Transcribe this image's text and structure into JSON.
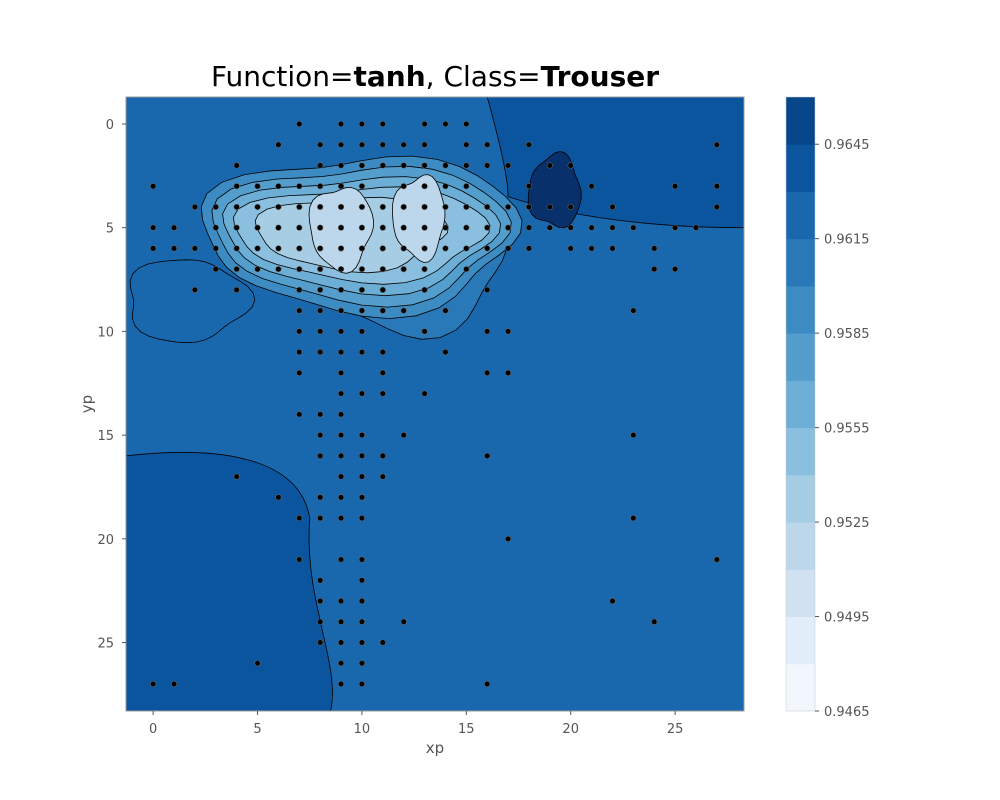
{
  "chart_data": {
    "type": "heatmap",
    "title_parts": [
      "Function=",
      "tanh",
      ", Class=",
      "Trouser"
    ],
    "xlabel": "xp",
    "ylabel": "yp",
    "xlim": [
      -1.3,
      28.3
    ],
    "ylim": [
      28.3,
      -1.3
    ],
    "y_inverted": true,
    "x_ticks": [
      "0",
      "5",
      "10",
      "15",
      "20",
      "25"
    ],
    "y_ticks": [
      "0",
      "5",
      "10",
      "15",
      "20",
      "25"
    ],
    "grid": false,
    "colorbar": {
      "levels": [
        0.9465,
        0.948,
        0.9495,
        0.951,
        0.9525,
        0.954,
        0.9555,
        0.957,
        0.9585,
        0.96,
        0.9615,
        0.963,
        0.9645,
        0.966
      ],
      "tick_labels": [
        "0.9465",
        "0.9495",
        "0.9525",
        "0.9555",
        "0.9585",
        "0.9615",
        "0.9645"
      ],
      "colors": [
        "#f2f7fd",
        "#e2eef9",
        "#d0e1f2",
        "#bcd7eb",
        "#a6cde4",
        "#8bbfdf",
        "#6caed6",
        "#539ecd",
        "#3c8bc3",
        "#2979b9",
        "#1967ad",
        "#0b559f",
        "#08468b",
        "#08306b"
      ]
    },
    "background_level_top": 0.9615,
    "background_level_left": 0.963,
    "regions": [
      {
        "name": "band-left",
        "level": 0.9615,
        "x": [
          -1.3,
          4.5
        ],
        "y": [
          6.5,
          10.5
        ]
      },
      {
        "name": "center-plateau",
        "level": 0.96,
        "x": [
          7,
          17
        ],
        "y": [
          2,
          10
        ]
      },
      {
        "name": "ring-1",
        "level": 0.9585,
        "x": [
          2.5,
          17.5
        ],
        "y": [
          1.5,
          9
        ]
      },
      {
        "name": "ring-2",
        "level": 0.957,
        "x": [
          3,
          17
        ],
        "y": [
          2,
          8.5
        ]
      },
      {
        "name": "ring-3",
        "level": 0.9555,
        "x": [
          3.5,
          16.5
        ],
        "y": [
          2.5,
          8
        ]
      },
      {
        "name": "ring-4",
        "level": 0.954,
        "x": [
          4,
          16
        ],
        "y": [
          3,
          7.5
        ]
      },
      {
        "name": "ring-5",
        "level": 0.9525,
        "x": [
          5,
          14
        ],
        "y": [
          3.5,
          7
        ]
      },
      {
        "name": "peak-left",
        "level": 0.951,
        "x": [
          7.5,
          10.5
        ],
        "y": [
          3,
          7
        ]
      },
      {
        "name": "peak-right",
        "level": 0.951,
        "x": [
          11.5,
          14
        ],
        "y": [
          2.5,
          6.5
        ]
      },
      {
        "name": "dark-patch-right",
        "level": 0.966,
        "x": [
          18,
          20.5
        ],
        "y": [
          1.5,
          5
        ]
      }
    ],
    "points": [
      [
        7,
        0
      ],
      [
        9,
        0
      ],
      [
        10,
        0
      ],
      [
        11,
        0
      ],
      [
        13,
        0
      ],
      [
        14,
        0
      ],
      [
        15,
        0
      ],
      [
        6,
        1
      ],
      [
        8,
        1
      ],
      [
        9,
        1
      ],
      [
        10,
        1
      ],
      [
        11,
        1
      ],
      [
        12,
        1
      ],
      [
        13,
        1
      ],
      [
        15,
        1
      ],
      [
        16,
        1
      ],
      [
        18,
        1
      ],
      [
        27,
        1
      ],
      [
        4,
        2
      ],
      [
        8,
        2
      ],
      [
        9,
        2
      ],
      [
        10,
        2
      ],
      [
        11,
        2
      ],
      [
        12,
        2
      ],
      [
        13,
        2
      ],
      [
        14,
        2
      ],
      [
        15,
        2
      ],
      [
        16,
        2
      ],
      [
        17,
        2
      ],
      [
        19,
        2
      ],
      [
        20,
        2
      ],
      [
        0,
        3
      ],
      [
        4,
        3
      ],
      [
        5,
        3
      ],
      [
        6,
        3
      ],
      [
        7,
        3
      ],
      [
        8,
        3
      ],
      [
        9,
        3
      ],
      [
        10,
        3
      ],
      [
        12,
        3
      ],
      [
        13,
        3
      ],
      [
        14,
        3
      ],
      [
        15,
        3
      ],
      [
        18,
        3
      ],
      [
        21,
        3
      ],
      [
        25,
        3
      ],
      [
        27,
        3
      ],
      [
        2,
        4
      ],
      [
        3,
        4
      ],
      [
        4,
        4
      ],
      [
        5,
        4
      ],
      [
        6,
        4
      ],
      [
        7,
        4
      ],
      [
        8,
        4
      ],
      [
        9,
        4
      ],
      [
        10,
        4
      ],
      [
        11,
        4
      ],
      [
        12,
        4
      ],
      [
        13,
        4
      ],
      [
        14,
        4
      ],
      [
        15,
        4
      ],
      [
        16,
        4
      ],
      [
        17,
        4
      ],
      [
        18,
        4
      ],
      [
        19,
        4
      ],
      [
        20,
        4
      ],
      [
        22,
        4
      ],
      [
        27,
        4
      ],
      [
        0,
        5
      ],
      [
        1,
        5
      ],
      [
        3,
        5
      ],
      [
        4,
        5
      ],
      [
        5,
        5
      ],
      [
        6,
        5
      ],
      [
        7,
        5
      ],
      [
        8,
        5
      ],
      [
        9,
        5
      ],
      [
        10,
        5
      ],
      [
        11,
        5
      ],
      [
        12,
        5
      ],
      [
        13,
        5
      ],
      [
        14,
        5
      ],
      [
        15,
        5
      ],
      [
        16,
        5
      ],
      [
        17,
        5
      ],
      [
        18,
        5
      ],
      [
        19,
        5
      ],
      [
        20,
        5
      ],
      [
        21,
        5
      ],
      [
        22,
        5
      ],
      [
        23,
        5
      ],
      [
        25,
        5
      ],
      [
        26,
        5
      ],
      [
        0,
        6
      ],
      [
        1,
        6
      ],
      [
        2,
        6
      ],
      [
        3,
        6
      ],
      [
        4,
        6
      ],
      [
        5,
        6
      ],
      [
        6,
        6
      ],
      [
        7,
        6
      ],
      [
        8,
        6
      ],
      [
        9,
        6
      ],
      [
        10,
        6
      ],
      [
        11,
        6
      ],
      [
        12,
        6
      ],
      [
        13,
        6
      ],
      [
        14,
        6
      ],
      [
        15,
        6
      ],
      [
        16,
        6
      ],
      [
        17,
        6
      ],
      [
        18,
        6
      ],
      [
        20,
        6
      ],
      [
        21,
        6
      ],
      [
        22,
        6
      ],
      [
        24,
        6
      ],
      [
        3,
        7
      ],
      [
        4,
        7
      ],
      [
        5,
        7
      ],
      [
        6,
        7
      ],
      [
        7,
        7
      ],
      [
        8,
        7
      ],
      [
        9,
        7
      ],
      [
        10,
        7
      ],
      [
        11,
        7
      ],
      [
        12,
        7
      ],
      [
        13,
        7
      ],
      [
        15,
        7
      ],
      [
        24,
        7
      ],
      [
        25,
        7
      ],
      [
        2,
        8
      ],
      [
        4,
        8
      ],
      [
        7,
        8
      ],
      [
        8,
        8
      ],
      [
        9,
        8
      ],
      [
        10,
        8
      ],
      [
        11,
        8
      ],
      [
        13,
        8
      ],
      [
        16,
        8
      ],
      [
        7,
        9
      ],
      [
        8,
        9
      ],
      [
        9,
        9
      ],
      [
        10,
        9
      ],
      [
        11,
        9
      ],
      [
        12,
        9
      ],
      [
        14,
        9
      ],
      [
        23,
        9
      ],
      [
        7,
        10
      ],
      [
        8,
        10
      ],
      [
        9,
        10
      ],
      [
        10,
        10
      ],
      [
        13,
        10
      ],
      [
        16,
        10
      ],
      [
        17,
        10
      ],
      [
        7,
        11
      ],
      [
        8,
        11
      ],
      [
        9,
        11
      ],
      [
        10,
        11
      ],
      [
        11,
        11
      ],
      [
        14,
        11
      ],
      [
        7,
        12
      ],
      [
        9,
        12
      ],
      [
        11,
        12
      ],
      [
        16,
        12
      ],
      [
        17,
        12
      ],
      [
        9,
        13
      ],
      [
        10,
        13
      ],
      [
        11,
        13
      ],
      [
        13,
        13
      ],
      [
        7,
        14
      ],
      [
        8,
        14
      ],
      [
        9,
        14
      ],
      [
        8,
        15
      ],
      [
        9,
        15
      ],
      [
        10,
        15
      ],
      [
        12,
        15
      ],
      [
        23,
        15
      ],
      [
        8,
        16
      ],
      [
        9,
        16
      ],
      [
        10,
        16
      ],
      [
        11,
        16
      ],
      [
        16,
        16
      ],
      [
        4,
        17
      ],
      [
        9,
        17
      ],
      [
        10,
        17
      ],
      [
        11,
        17
      ],
      [
        6,
        18
      ],
      [
        8,
        18
      ],
      [
        9,
        18
      ],
      [
        10,
        18
      ],
      [
        7,
        19
      ],
      [
        8,
        19
      ],
      [
        9,
        19
      ],
      [
        10,
        19
      ],
      [
        23,
        19
      ],
      [
        17,
        20
      ],
      [
        7,
        21
      ],
      [
        9,
        21
      ],
      [
        10,
        21
      ],
      [
        27,
        21
      ],
      [
        8,
        22
      ],
      [
        10,
        22
      ],
      [
        8,
        23
      ],
      [
        9,
        23
      ],
      [
        10,
        23
      ],
      [
        22,
        23
      ],
      [
        8,
        24
      ],
      [
        9,
        24
      ],
      [
        10,
        24
      ],
      [
        12,
        24
      ],
      [
        24,
        24
      ],
      [
        8,
        25
      ],
      [
        9,
        25
      ],
      [
        10,
        25
      ],
      [
        11,
        25
      ],
      [
        5,
        26
      ],
      [
        9,
        26
      ],
      [
        10,
        26
      ],
      [
        0,
        27
      ],
      [
        1,
        27
      ],
      [
        9,
        27
      ],
      [
        10,
        27
      ],
      [
        16,
        27
      ]
    ]
  }
}
